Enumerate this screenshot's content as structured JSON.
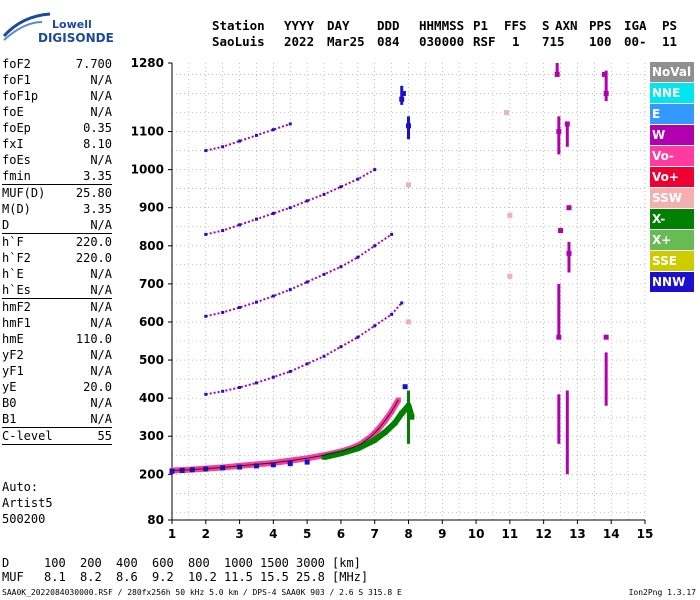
{
  "logo": {
    "line1": "Lowell",
    "line2": "DIGISONDE"
  },
  "header": {
    "labels": [
      "Station",
      "YYYY",
      "DAY",
      "DDD",
      "HHMMSS",
      "P1",
      "FFS",
      "S",
      "AXN",
      "PPS",
      "IGA",
      "PS"
    ],
    "values": [
      "SaoLuis",
      "2022",
      "Mar25",
      "084",
      "030000",
      "RSF",
      "1",
      "715",
      "100",
      "00-",
      "11"
    ]
  },
  "params": [
    {
      "group": [
        {
          "name": "foF2",
          "value": "7.700"
        },
        {
          "name": "foF1",
          "value": "N/A"
        },
        {
          "name": "foF1p",
          "value": "N/A"
        },
        {
          "name": "foE",
          "value": "N/A"
        },
        {
          "name": "foEp",
          "value": "0.35"
        },
        {
          "name": "fxI",
          "value": "8.10"
        },
        {
          "name": "foEs",
          "value": "N/A"
        },
        {
          "name": "fmin",
          "value": "3.35"
        }
      ]
    },
    {
      "group": [
        {
          "name": "MUF(D)",
          "value": "25.80"
        },
        {
          "name": "M(D)",
          "value": "3.35"
        },
        {
          "name": "D",
          "value": "N/A"
        }
      ]
    },
    {
      "group": [
        {
          "name": "h`F",
          "value": "220.0"
        },
        {
          "name": "h`F2",
          "value": "220.0"
        },
        {
          "name": "h`E",
          "value": "N/A"
        },
        {
          "name": "h`Es",
          "value": "N/A"
        }
      ]
    },
    {
      "group": [
        {
          "name": "hmF2",
          "value": "N/A"
        },
        {
          "name": "hmF1",
          "value": "N/A"
        },
        {
          "name": "hmE",
          "value": "110.0"
        },
        {
          "name": "yF2",
          "value": "N/A"
        },
        {
          "name": "yF1",
          "value": "N/A"
        },
        {
          "name": "yE",
          "value": "20.0"
        },
        {
          "name": "B0",
          "value": "N/A"
        },
        {
          "name": "B1",
          "value": "N/A"
        }
      ]
    },
    {
      "group": [
        {
          "name": "C-level",
          "value": "55"
        }
      ]
    }
  ],
  "autoscaling": {
    "label": "Auto:",
    "program": "Artist5",
    "version": "500200"
  },
  "legend": [
    {
      "label": "NoVal",
      "color": "#909090"
    },
    {
      "label": "NNE",
      "color": "#00e5ee"
    },
    {
      "label": "E",
      "color": "#3399ff"
    },
    {
      "label": "W",
      "color": "#b000b0"
    },
    {
      "label": "Vo-",
      "color": "#ff3aa0"
    },
    {
      "label": "Vo+",
      "color": "#ee0030"
    },
    {
      "label": "SSW",
      "color": "#f4b0b0"
    },
    {
      "label": "X-",
      "color": "#008000"
    },
    {
      "label": "X+",
      "color": "#66bb55"
    },
    {
      "label": "SSE",
      "color": "#cccc00"
    },
    {
      "label": "NNW",
      "color": "#1c10d0"
    }
  ],
  "muf_table": {
    "d_label": "D",
    "d_values": [
      "100",
      "200",
      "400",
      "600",
      "800",
      "1000",
      "1500",
      "3000"
    ],
    "d_unit": "[km]",
    "muf_label": "MUF",
    "muf_values": [
      "8.1",
      "8.2",
      "8.6",
      "9.2",
      "10.2",
      "11.5",
      "15.5",
      "25.8"
    ],
    "muf_unit": "[MHz]"
  },
  "footer": {
    "text": "SAA0K_2022084030000.RSF / 280fx256h 50 kHz 5.0 km / DPS-4 SAA0K 903 / 2.6 S 315.8 E",
    "version": "Ion2Png 1.3.17"
  },
  "chart_data": {
    "type": "scatter",
    "xlim": [
      1,
      15
    ],
    "ylim": [
      80,
      1280
    ],
    "x_ticks": [
      1,
      2,
      3,
      4,
      5,
      6,
      7,
      8,
      9,
      10,
      11,
      12,
      13,
      14,
      15
    ],
    "y_ticks": [
      80,
      200,
      300,
      400,
      500,
      600,
      700,
      800,
      900,
      1000,
      1100,
      1280
    ],
    "grid": true,
    "series": [
      {
        "name": "Vo-",
        "color": "#ff3aa0",
        "x": [
          1.0,
          1.5,
          2.0,
          2.5,
          3.0,
          3.5,
          4.0,
          4.5,
          5.0,
          5.5,
          6.0,
          6.3,
          6.6,
          6.9,
          7.1,
          7.3,
          7.5,
          7.6,
          7.7
        ],
        "y": [
          210,
          212,
          215,
          218,
          222,
          226,
          230,
          236,
          242,
          250,
          260,
          268,
          280,
          300,
          318,
          340,
          365,
          380,
          395
        ]
      },
      {
        "name": "X-",
        "color": "#008000",
        "x": [
          5.5,
          6.0,
          6.5,
          7.0,
          7.3,
          7.6,
          7.8,
          8.0,
          8.1
        ],
        "y": [
          245,
          255,
          268,
          290,
          310,
          335,
          360,
          380,
          350
        ]
      },
      {
        "name": "NNW",
        "color": "#1c10d0",
        "x": [
          1.0,
          1.3,
          1.6,
          2.0,
          2.5,
          3.0,
          3.5,
          4.0,
          4.5,
          5.0,
          7.9,
          8.0,
          7.8,
          7.85
        ],
        "y": [
          208,
          210,
          212,
          214,
          217,
          219,
          222,
          225,
          228,
          232,
          430,
          1115,
          1185,
          1200
        ]
      },
      {
        "name": "W",
        "color": "#b000b0",
        "x": [
          12.4,
          12.45,
          12.7,
          12.75,
          13.8,
          13.85,
          12.5,
          12.75,
          13.85,
          12.45
        ],
        "y": [
          1250,
          1100,
          1120,
          900,
          1250,
          1200,
          840,
          780,
          560,
          560
        ]
      },
      {
        "name": "SSW",
        "color": "#f4b0b0",
        "x": [
          8.0,
          8.0,
          10.9,
          11.0,
          11.0
        ],
        "y": [
          960,
          600,
          1150,
          880,
          720
        ]
      }
    ],
    "traces": [
      {
        "name": "W",
        "color": "#b000b0",
        "x": [
          2.0,
          2.5,
          3.0,
          3.5,
          4.0,
          4.5,
          5.0,
          5.5,
          6.0,
          6.5,
          7.0,
          7.5,
          7.8
        ],
        "y": [
          410,
          418,
          428,
          440,
          455,
          470,
          490,
          510,
          535,
          560,
          590,
          620,
          650
        ]
      },
      {
        "name": "W",
        "color": "#b000b0",
        "x": [
          2.0,
          2.5,
          3.0,
          3.5,
          4.0,
          4.5,
          5.0,
          5.5,
          6.0,
          6.5,
          7.0,
          7.5
        ],
        "y": [
          615,
          625,
          638,
          652,
          668,
          685,
          705,
          725,
          745,
          770,
          800,
          830
        ]
      },
      {
        "name": "W",
        "color": "#b000b0",
        "x": [
          2.0,
          2.5,
          3.0,
          3.5,
          4.0,
          4.5,
          5.0,
          5.5,
          6.0,
          6.5,
          7.0
        ],
        "y": [
          830,
          840,
          855,
          870,
          885,
          900,
          918,
          935,
          955,
          975,
          1000
        ]
      },
      {
        "name": "W",
        "color": "#b000b0",
        "x": [
          2.0,
          2.5,
          3.0,
          3.5,
          4.0,
          4.5
        ],
        "y": [
          1050,
          1060,
          1075,
          1090,
          1105,
          1120
        ]
      }
    ],
    "verticals": [
      {
        "name": "W",
        "color": "#b000b0",
        "x": 12.4,
        "y1": 1250,
        "y2": 1280
      },
      {
        "name": "W",
        "color": "#b000b0",
        "x": 12.45,
        "y1": 1040,
        "y2": 1140
      },
      {
        "name": "W",
        "color": "#b000b0",
        "x": 12.7,
        "y1": 1060,
        "y2": 1120
      },
      {
        "name": "W",
        "color": "#b000b0",
        "x": 12.75,
        "y1": 730,
        "y2": 810
      },
      {
        "name": "W",
        "color": "#b000b0",
        "x": 13.85,
        "y1": 1180,
        "y2": 1260
      },
      {
        "name": "W",
        "color": "#b000b0",
        "x": 12.45,
        "y1": 560,
        "y2": 700
      },
      {
        "name": "W",
        "color": "#b000b0",
        "x": 12.45,
        "y1": 280,
        "y2": 410
      },
      {
        "name": "W",
        "color": "#b000b0",
        "x": 12.7,
        "y1": 200,
        "y2": 420
      },
      {
        "name": "W",
        "color": "#b000b0",
        "x": 13.85,
        "y1": 380,
        "y2": 520
      },
      {
        "name": "NNW",
        "color": "#1c10d0",
        "x": 7.8,
        "y1": 1170,
        "y2": 1220
      },
      {
        "name": "NNW",
        "color": "#1c10d0",
        "x": 8.0,
        "y1": 1080,
        "y2": 1140
      },
      {
        "name": "X-",
        "color": "#008000",
        "x": 8.0,
        "y1": 280,
        "y2": 420
      }
    ]
  }
}
